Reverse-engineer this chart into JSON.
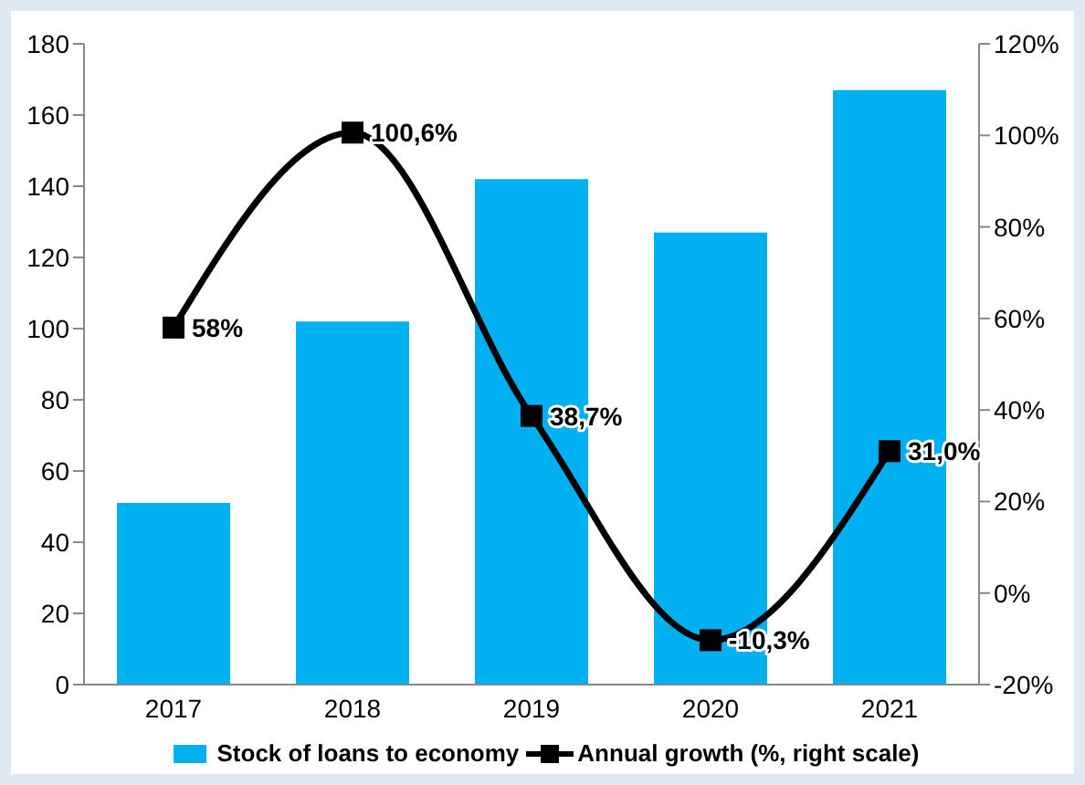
{
  "chart_data": {
    "type": "bar",
    "categories": [
      "2017",
      "2018",
      "2019",
      "2020",
      "2021"
    ],
    "series": [
      {
        "name": "Stock of loans to economy",
        "color": "#00b0f0",
        "values": [
          51,
          102,
          142,
          127,
          167
        ]
      },
      {
        "name": "Annual growth (%, right scale)",
        "type": "line",
        "axis": "y2",
        "color": "#000000",
        "values": [
          58,
          100.6,
          38.7,
          -10.3,
          31.0
        ],
        "value_labels": [
          "58%",
          "100,6%",
          "38,7%",
          "-10,3%",
          "31,0%"
        ]
      }
    ],
    "ylim": [
      0,
      180
    ],
    "yticks": [
      0,
      20,
      40,
      60,
      80,
      100,
      120,
      140,
      160,
      180
    ],
    "y2lim": [
      -20,
      120
    ],
    "y2ticks": [
      {
        "value": -20,
        "label": "-20%"
      },
      {
        "value": 0,
        "label": "0%"
      },
      {
        "value": 20,
        "label": "20%"
      },
      {
        "value": 40,
        "label": "40%"
      },
      {
        "value": 60,
        "label": "60%"
      },
      {
        "value": 80,
        "label": "80%"
      },
      {
        "value": 100,
        "label": "100%"
      },
      {
        "value": 120,
        "label": "120%"
      }
    ],
    "marker": "square",
    "legend": "bottom"
  }
}
